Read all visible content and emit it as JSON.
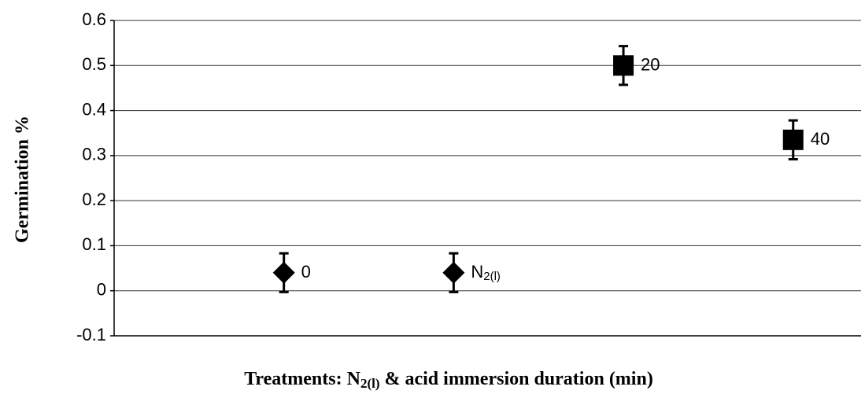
{
  "chart_data": {
    "type": "scatter",
    "y_label": "Germination %",
    "x_label": [
      "Treatments: N",
      "2(l)",
      " & acid immersion duration (min)"
    ],
    "xlim": [
      0,
      4.4
    ],
    "ylim": [
      -0.1,
      0.6
    ],
    "yticks": [
      -0.1,
      0,
      0.1,
      0.2,
      0.3,
      0.4,
      0.5,
      0.6
    ],
    "grid": true,
    "series": [
      {
        "marker": "diamond",
        "color": "#000000",
        "x": [
          1,
          2
        ],
        "values": [
          0.04,
          0.04
        ],
        "errors": [
          0.043,
          0.043
        ],
        "labels": [
          [
            "0"
          ],
          [
            "N",
            "2(l)"
          ]
        ]
      },
      {
        "marker": "square",
        "color": "#000000",
        "x": [
          3,
          4
        ],
        "values": [
          0.5,
          0.335
        ],
        "errors": [
          0.043,
          0.043
        ],
        "labels": [
          [
            "20"
          ],
          [
            "40"
          ]
        ]
      }
    ]
  }
}
